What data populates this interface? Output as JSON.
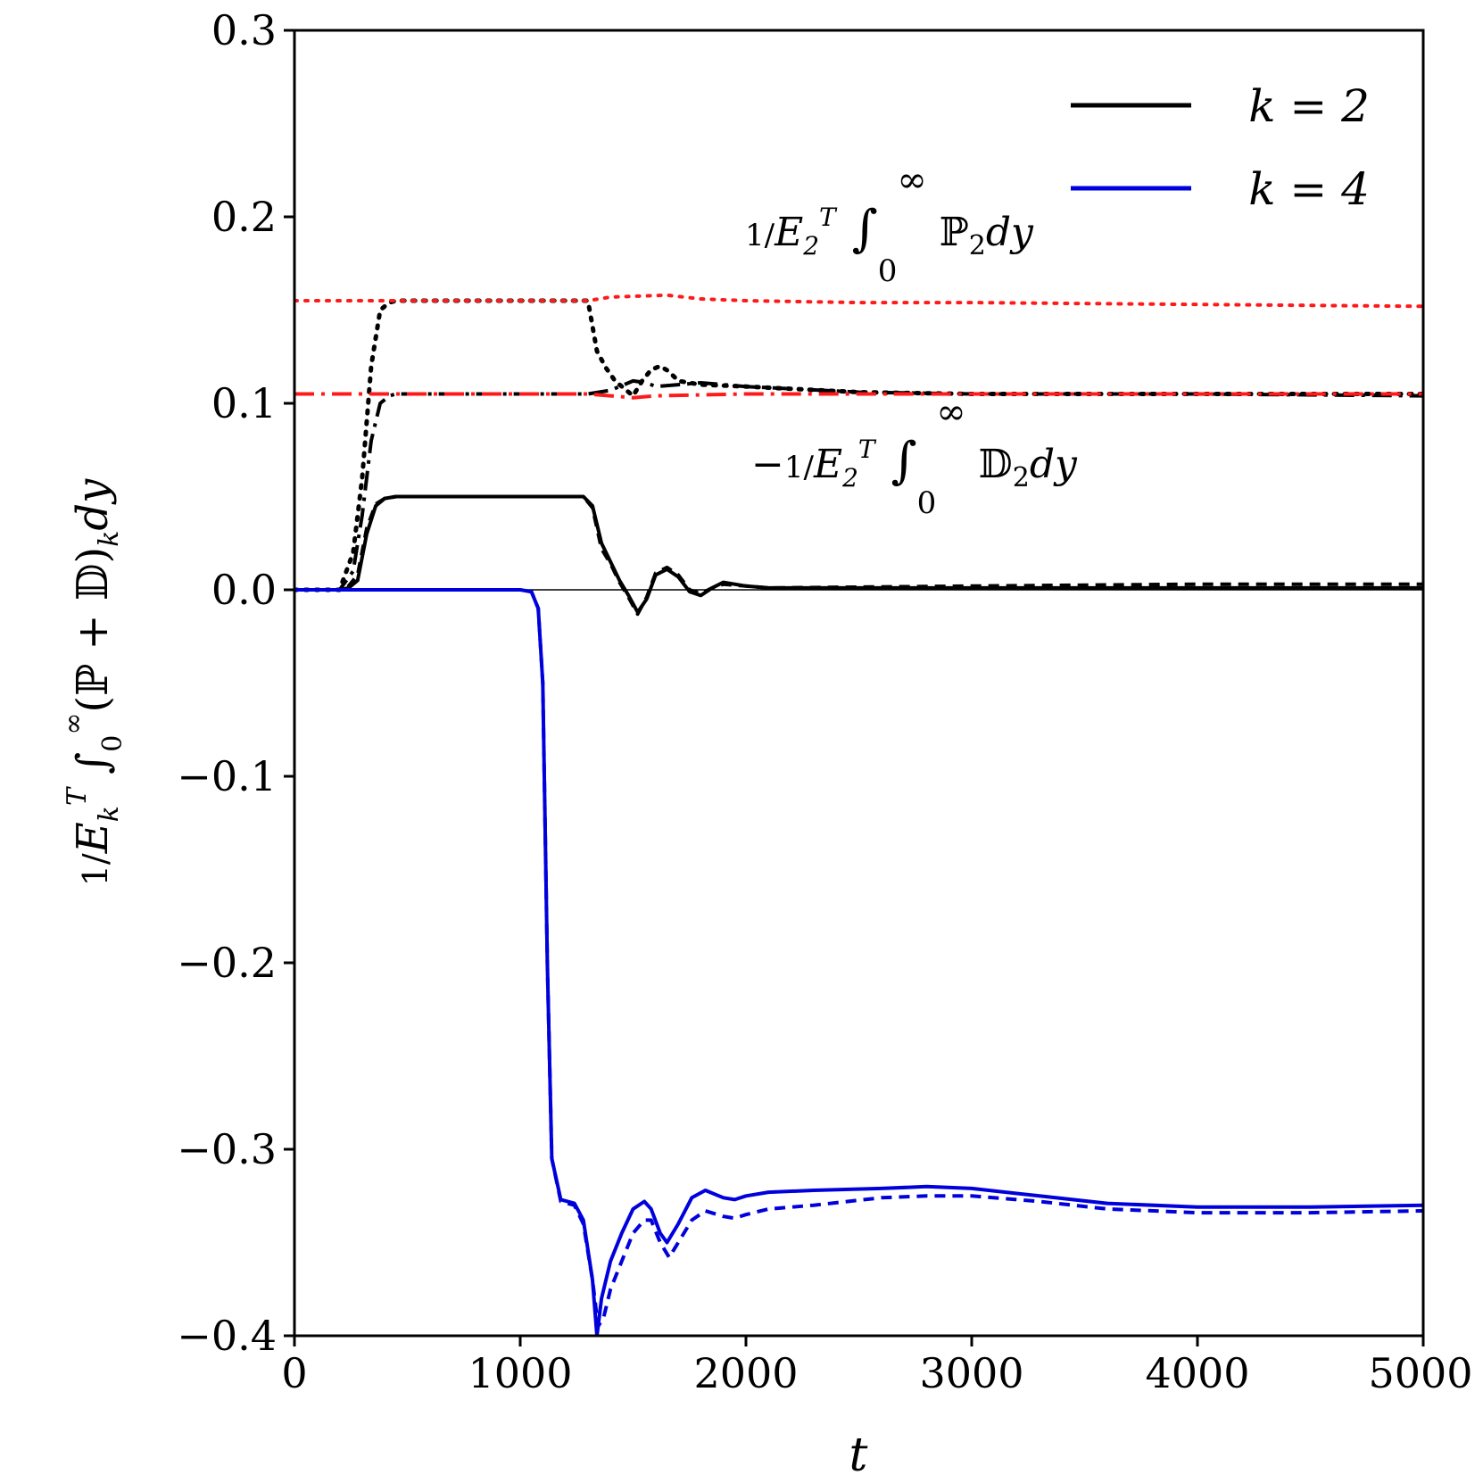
{
  "chart_data": {
    "type": "line",
    "xlabel": "t",
    "ylabel": "1/E_k^T ∫_0^∞ (ℙ + 𝔻)_k dy",
    "xlim": [
      0,
      5000
    ],
    "ylim": [
      -0.4,
      0.3
    ],
    "xticks": [
      0,
      1000,
      2000,
      3000,
      4000,
      5000
    ],
    "xtick_labels": [
      "0",
      "1000",
      "2000",
      "3000",
      "4000",
      "5000"
    ],
    "yticks": [
      0.3,
      0.2,
      0.1,
      0.0,
      -0.1,
      -0.2,
      -0.3,
      -0.4
    ],
    "ytick_labels": [
      "0.3",
      "0.2",
      "0.1",
      "0.0",
      "−0.1",
      "−0.2",
      "−0.3",
      "−0.4"
    ],
    "grid": false,
    "legend_position": "top-right",
    "legend": [
      {
        "label": "k = 2",
        "color": "#000000"
      },
      {
        "label": "k = 4",
        "color": "#0000dd"
      }
    ],
    "annotations": [
      {
        "text": "1/E_2^T ∫_0^∞ ℙ_2 dy",
        "near": "upper middle"
      },
      {
        "text": "−1/E_2^T ∫_0^∞ 𝔻_2 dy",
        "near": "middle"
      }
    ],
    "series": [
      {
        "name": "k=2 total (solid)",
        "color": "#000000",
        "dash": "solid",
        "width": 4,
        "x": [
          0,
          200,
          240,
          280,
          320,
          360,
          400,
          450,
          1200,
          1280,
          1320,
          1360,
          1400,
          1440,
          1480,
          1520,
          1560,
          1600,
          1650,
          1700,
          1750,
          1800,
          1850,
          1900,
          2000,
          2100,
          2500,
          3000,
          3500,
          4000,
          5000
        ],
        "y": [
          0,
          0,
          0.001,
          0.005,
          0.03,
          0.045,
          0.049,
          0.05,
          0.05,
          0.05,
          0.045,
          0.025,
          0.015,
          0.005,
          -0.003,
          -0.012,
          -0.005,
          0.008,
          0.011,
          0.007,
          -0.001,
          -0.003,
          0.001,
          0.004,
          0.002,
          0.001,
          0.001,
          0.001,
          0.001,
          0.001,
          0.001
        ]
      },
      {
        "name": "k=2 total (dashed)",
        "color": "#000000",
        "dash": "12,8",
        "width": 4,
        "x": [
          0,
          200,
          240,
          280,
          320,
          360,
          400,
          450,
          1200,
          1280,
          1320,
          1360,
          1400,
          1440,
          1480,
          1520,
          1560,
          1600,
          1650,
          1700,
          1750,
          1800,
          1850,
          1900,
          2000,
          2100,
          3000,
          4000,
          5000
        ],
        "y": [
          0,
          0,
          0.002,
          0.008,
          0.033,
          0.046,
          0.049,
          0.05,
          0.05,
          0.05,
          0.044,
          0.022,
          0.014,
          0.004,
          -0.004,
          -0.013,
          -0.004,
          0.009,
          0.012,
          0.008,
          0.0,
          -0.002,
          0.001,
          0.003,
          0.002,
          0.001,
          0.002,
          0.003,
          0.003
        ]
      },
      {
        "name": "k=2 production (dotted)",
        "color": "#000000",
        "dash": "3,9",
        "width": 5,
        "x": [
          0,
          200,
          260,
          300,
          340,
          380,
          420,
          450,
          1300,
          1340,
          1380,
          1420,
          1460,
          1500,
          1540,
          1580,
          1620,
          1660,
          1700,
          1800,
          2000,
          2500,
          3000,
          4000,
          5000
        ],
        "y": [
          0,
          0,
          0.02,
          0.06,
          0.12,
          0.15,
          0.154,
          0.155,
          0.155,
          0.128,
          0.119,
          0.112,
          0.108,
          0.104,
          0.112,
          0.118,
          0.12,
          0.117,
          0.112,
          0.11,
          0.109,
          0.106,
          0.105,
          0.105,
          0.105
        ]
      },
      {
        "name": "k=2 dissipation (dash-dot)",
        "color": "#000000",
        "dash": "22,8,4,8",
        "width": 4,
        "x": [
          0,
          200,
          260,
          300,
          340,
          380,
          420,
          450,
          1300,
          1400,
          1500,
          1560,
          1600,
          1700,
          1800,
          2000,
          2500,
          3000,
          4000,
          5000
        ],
        "y": [
          0,
          0,
          0.01,
          0.04,
          0.08,
          0.1,
          0.104,
          0.105,
          0.105,
          0.107,
          0.112,
          0.111,
          0.109,
          0.11,
          0.111,
          0.109,
          0.106,
          0.105,
          0.105,
          0.104
        ]
      },
      {
        "name": "reference production (red dotted)",
        "color": "#ff1a1a",
        "dash": "3,9",
        "width": 4,
        "x": [
          0,
          1300,
          1400,
          1650,
          1800,
          2000,
          2500,
          3000,
          4000,
          5000
        ],
        "y": [
          0.155,
          0.155,
          0.157,
          0.158,
          0.156,
          0.155,
          0.154,
          0.154,
          0.153,
          0.152
        ]
      },
      {
        "name": "reference dissipation (red dash-dot)",
        "color": "#ff1a1a",
        "dash": "22,8,4,8",
        "width": 4,
        "x": [
          0,
          1300,
          1400,
          1500,
          1600,
          2000,
          3000,
          4000,
          5000
        ],
        "y": [
          0.105,
          0.105,
          0.104,
          0.103,
          0.104,
          0.105,
          0.105,
          0.105,
          0.105
        ]
      },
      {
        "name": "k=4 total (dashed)",
        "color": "#0000dd",
        "dash": "12,8",
        "width": 4,
        "x": [
          0,
          1000,
          1050,
          1080,
          1100,
          1120,
          1140,
          1180,
          1240,
          1280,
          1320,
          1345,
          1370,
          1400,
          1450,
          1500,
          1550,
          1580,
          1620,
          1660,
          1700,
          1760,
          1820,
          1900,
          1950,
          2000,
          2100,
          2300,
          2600,
          2800,
          3000,
          3300,
          3600,
          4000,
          4500,
          5000
        ],
        "y": [
          0,
          0,
          -0.001,
          -0.01,
          -0.05,
          -0.2,
          -0.305,
          -0.328,
          -0.33,
          -0.34,
          -0.37,
          -0.395,
          -0.39,
          -0.375,
          -0.36,
          -0.345,
          -0.338,
          -0.338,
          -0.35,
          -0.358,
          -0.35,
          -0.338,
          -0.333,
          -0.336,
          -0.337,
          -0.335,
          -0.332,
          -0.33,
          -0.326,
          -0.325,
          -0.325,
          -0.328,
          -0.332,
          -0.334,
          -0.334,
          -0.333
        ]
      },
      {
        "name": "k=4 total (solid)",
        "color": "#0000dd",
        "dash": "solid",
        "width": 4,
        "x": [
          0,
          1000,
          1050,
          1080,
          1100,
          1120,
          1140,
          1180,
          1240,
          1280,
          1320,
          1340,
          1360,
          1400,
          1450,
          1500,
          1550,
          1580,
          1620,
          1650,
          1700,
          1760,
          1820,
          1900,
          1950,
          2000,
          2100,
          2300,
          2600,
          2800,
          3000,
          3300,
          3600,
          4000,
          4500,
          5000
        ],
        "y": [
          0,
          0,
          -0.001,
          -0.01,
          -0.05,
          -0.2,
          -0.305,
          -0.327,
          -0.329,
          -0.338,
          -0.37,
          -0.4,
          -0.38,
          -0.36,
          -0.345,
          -0.332,
          -0.328,
          -0.332,
          -0.345,
          -0.35,
          -0.34,
          -0.326,
          -0.322,
          -0.326,
          -0.327,
          -0.325,
          -0.323,
          -0.322,
          -0.321,
          -0.32,
          -0.321,
          -0.325,
          -0.329,
          -0.331,
          -0.331,
          -0.33
        ]
      }
    ]
  }
}
